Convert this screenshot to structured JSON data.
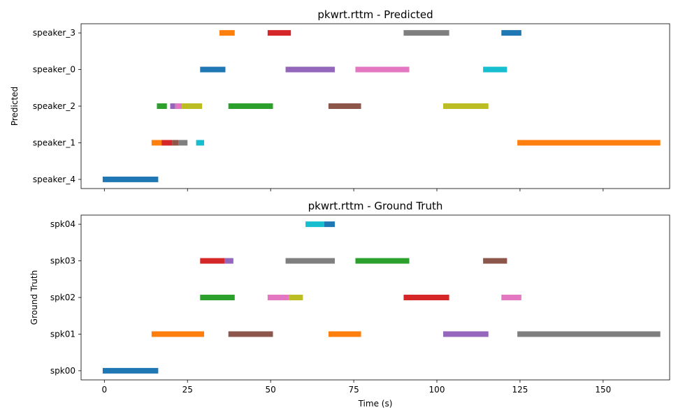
{
  "chart_data": [
    {
      "type": "timeline",
      "title": "pkwrt.rttm - Predicted",
      "xlabel": "",
      "ylabel": "Predicted",
      "xlim": [
        -7,
        170
      ],
      "xticks": [
        0,
        25,
        50,
        75,
        100,
        125,
        150
      ],
      "show_xtick_labels": false,
      "grid": false,
      "categories": [
        "speaker_4",
        "speaker_1",
        "speaker_2",
        "speaker_0",
        "speaker_3"
      ],
      "segments": [
        {
          "row": "speaker_4",
          "start": -0.5,
          "end": 16.2,
          "color": "#1f77b4"
        },
        {
          "row": "speaker_1",
          "start": 14.2,
          "end": 17.2,
          "color": "#ff7f0e"
        },
        {
          "row": "speaker_1",
          "start": 17.2,
          "end": 20.4,
          "color": "#d62728"
        },
        {
          "row": "speaker_1",
          "start": 20.4,
          "end": 22.3,
          "color": "#8c564b"
        },
        {
          "row": "speaker_1",
          "start": 22.3,
          "end": 25.0,
          "color": "#7f7f7f"
        },
        {
          "row": "speaker_1",
          "start": 27.6,
          "end": 30.0,
          "color": "#17becf"
        },
        {
          "row": "speaker_1",
          "start": 124.2,
          "end": 167.2,
          "color": "#ff7f0e"
        },
        {
          "row": "speaker_2",
          "start": 15.8,
          "end": 18.8,
          "color": "#2ca02c"
        },
        {
          "row": "speaker_2",
          "start": 19.8,
          "end": 21.3,
          "color": "#9467bd"
        },
        {
          "row": "speaker_2",
          "start": 21.3,
          "end": 23.3,
          "color": "#e377c2"
        },
        {
          "row": "speaker_2",
          "start": 23.3,
          "end": 29.4,
          "color": "#bcbd22"
        },
        {
          "row": "speaker_2",
          "start": 37.3,
          "end": 50.7,
          "color": "#2ca02c"
        },
        {
          "row": "speaker_2",
          "start": 67.4,
          "end": 77.2,
          "color": "#8c564b"
        },
        {
          "row": "speaker_2",
          "start": 101.9,
          "end": 115.5,
          "color": "#bcbd22"
        },
        {
          "row": "speaker_0",
          "start": 28.8,
          "end": 36.4,
          "color": "#1f77b4"
        },
        {
          "row": "speaker_0",
          "start": 54.5,
          "end": 69.3,
          "color": "#9467bd"
        },
        {
          "row": "speaker_0",
          "start": 75.5,
          "end": 91.7,
          "color": "#e377c2"
        },
        {
          "row": "speaker_0",
          "start": 113.9,
          "end": 121.1,
          "color": "#17becf"
        },
        {
          "row": "speaker_3",
          "start": 34.6,
          "end": 39.2,
          "color": "#ff7f0e"
        },
        {
          "row": "speaker_3",
          "start": 49.1,
          "end": 56.1,
          "color": "#d62728"
        },
        {
          "row": "speaker_3",
          "start": 90.0,
          "end": 103.7,
          "color": "#7f7f7f"
        },
        {
          "row": "speaker_3",
          "start": 119.4,
          "end": 125.4,
          "color": "#1f77b4"
        }
      ]
    },
    {
      "type": "timeline",
      "title": "pkwrt.rttm - Ground Truth",
      "xlabel": "Time (s)",
      "ylabel": "Ground Truth",
      "xlim": [
        -7,
        170
      ],
      "xticks": [
        0,
        25,
        50,
        75,
        100,
        125,
        150
      ],
      "show_xtick_labels": true,
      "grid": false,
      "categories": [
        "spk00",
        "spk01",
        "spk02",
        "spk03",
        "spk04"
      ],
      "segments": [
        {
          "row": "spk00",
          "start": -0.5,
          "end": 16.2,
          "color": "#1f77b4"
        },
        {
          "row": "spk01",
          "start": 14.2,
          "end": 30.0,
          "color": "#ff7f0e"
        },
        {
          "row": "spk01",
          "start": 37.3,
          "end": 50.7,
          "color": "#8c564b"
        },
        {
          "row": "spk01",
          "start": 67.4,
          "end": 77.2,
          "color": "#ff7f0e"
        },
        {
          "row": "spk01",
          "start": 101.9,
          "end": 115.5,
          "color": "#9467bd"
        },
        {
          "row": "spk01",
          "start": 124.2,
          "end": 167.2,
          "color": "#7f7f7f"
        },
        {
          "row": "spk02",
          "start": 28.8,
          "end": 39.2,
          "color": "#2ca02c"
        },
        {
          "row": "spk02",
          "start": 49.1,
          "end": 55.6,
          "color": "#e377c2"
        },
        {
          "row": "spk02",
          "start": 55.6,
          "end": 59.7,
          "color": "#bcbd22"
        },
        {
          "row": "spk02",
          "start": 90.0,
          "end": 103.7,
          "color": "#d62728"
        },
        {
          "row": "spk02",
          "start": 119.4,
          "end": 125.4,
          "color": "#e377c2"
        },
        {
          "row": "spk03",
          "start": 28.8,
          "end": 36.1,
          "color": "#d62728"
        },
        {
          "row": "spk03",
          "start": 36.1,
          "end": 38.8,
          "color": "#9467bd"
        },
        {
          "row": "spk03",
          "start": 54.5,
          "end": 69.3,
          "color": "#7f7f7f"
        },
        {
          "row": "spk03",
          "start": 75.5,
          "end": 91.7,
          "color": "#2ca02c"
        },
        {
          "row": "spk03",
          "start": 113.9,
          "end": 121.1,
          "color": "#8c564b"
        },
        {
          "row": "spk04",
          "start": 60.5,
          "end": 66.1,
          "color": "#17becf"
        },
        {
          "row": "spk04",
          "start": 66.1,
          "end": 69.3,
          "color": "#1f77b4"
        }
      ]
    }
  ]
}
